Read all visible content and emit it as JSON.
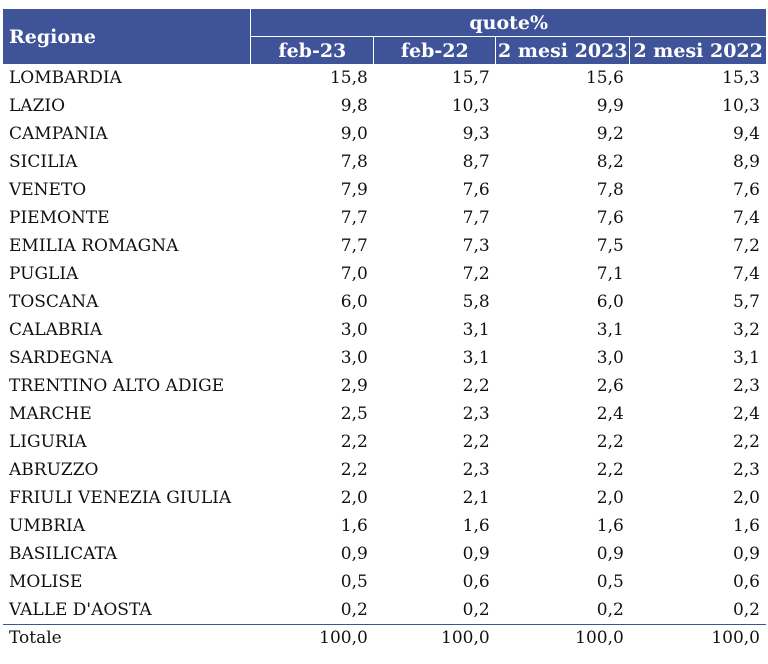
{
  "header": {
    "region_label": "Regione",
    "group_label": "quote%",
    "columns": [
      "feb-23",
      "feb-22",
      "2 mesi 2023",
      "2 mesi 2022"
    ]
  },
  "rows": [
    {
      "region": "LOMBARDIA",
      "values": [
        "15,8",
        "15,7",
        "15,6",
        "15,3"
      ]
    },
    {
      "region": "LAZIO",
      "values": [
        "9,8",
        "10,3",
        "9,9",
        "10,3"
      ]
    },
    {
      "region": "CAMPANIA",
      "values": [
        "9,0",
        "9,3",
        "9,2",
        "9,4"
      ]
    },
    {
      "region": "SICILIA",
      "values": [
        "7,8",
        "8,7",
        "8,2",
        "8,9"
      ]
    },
    {
      "region": "VENETO",
      "values": [
        "7,9",
        "7,6",
        "7,8",
        "7,6"
      ]
    },
    {
      "region": "PIEMONTE",
      "values": [
        "7,7",
        "7,7",
        "7,6",
        "7,4"
      ]
    },
    {
      "region": "EMILIA ROMAGNA",
      "values": [
        "7,7",
        "7,3",
        "7,5",
        "7,2"
      ]
    },
    {
      "region": "PUGLIA",
      "values": [
        "7,0",
        "7,2",
        "7,1",
        "7,4"
      ]
    },
    {
      "region": "TOSCANA",
      "values": [
        "6,0",
        "5,8",
        "6,0",
        "5,7"
      ]
    },
    {
      "region": "CALABRIA",
      "values": [
        "3,0",
        "3,1",
        "3,1",
        "3,2"
      ]
    },
    {
      "region": "SARDEGNA",
      "values": [
        "3,0",
        "3,1",
        "3,0",
        "3,1"
      ]
    },
    {
      "region": "TRENTINO ALTO ADIGE",
      "values": [
        "2,9",
        "2,2",
        "2,6",
        "2,3"
      ]
    },
    {
      "region": "MARCHE",
      "values": [
        "2,5",
        "2,3",
        "2,4",
        "2,4"
      ]
    },
    {
      "region": "LIGURIA",
      "values": [
        "2,2",
        "2,2",
        "2,2",
        "2,2"
      ]
    },
    {
      "region": "ABRUZZO",
      "values": [
        "2,2",
        "2,3",
        "2,2",
        "2,3"
      ]
    },
    {
      "region": "FRIULI VENEZIA GIULIA",
      "values": [
        "2,0",
        "2,1",
        "2,0",
        "2,0"
      ]
    },
    {
      "region": "UMBRIA",
      "values": [
        "1,6",
        "1,6",
        "1,6",
        "1,6"
      ]
    },
    {
      "region": "BASILICATA",
      "values": [
        "0,9",
        "0,9",
        "0,9",
        "0,9"
      ]
    },
    {
      "region": "MOLISE",
      "values": [
        "0,5",
        "0,6",
        "0,5",
        "0,6"
      ]
    },
    {
      "region": "VALLE D'AOSTA",
      "values": [
        "0,2",
        "0,2",
        "0,2",
        "0,2"
      ]
    }
  ],
  "total": {
    "region": "Totale",
    "values": [
      "100,0",
      "100,0",
      "100,0",
      "100,0"
    ]
  },
  "colors": {
    "header_bg": "#3f5399",
    "header_text": "#ffffff"
  }
}
